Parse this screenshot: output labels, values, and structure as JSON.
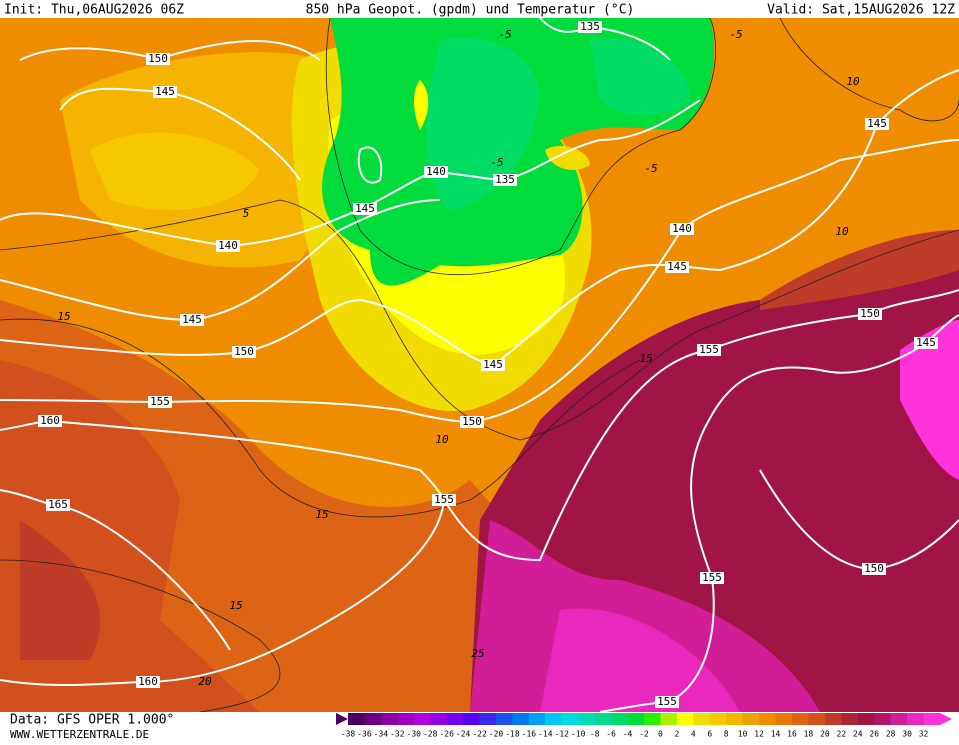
{
  "header": {
    "init": "Init: Thu,06AUG2026 06Z",
    "title": "850 hPa Geopot. (gpdm) und Temperatur (°C)",
    "valid": "Valid: Sat,15AUG2026 12Z"
  },
  "footer": {
    "source": "Data: GFS OPER 1.000°",
    "site": "WWW.WETTERZENTRALE.DE"
  },
  "legend": {
    "labels": [
      -38,
      -36,
      -34,
      -32,
      -30,
      -28,
      -26,
      -24,
      -22,
      -20,
      -18,
      -16,
      -14,
      -12,
      -10,
      -8,
      -6,
      -4,
      -2,
      0,
      2,
      4,
      6,
      8,
      10,
      12,
      14,
      16,
      18,
      20,
      22,
      24,
      26,
      28,
      30,
      32
    ],
    "colors": [
      "#4b0060",
      "#6a0080",
      "#8a00a0",
      "#a000c0",
      "#b400dc",
      "#9600e6",
      "#7800f0",
      "#5a00f0",
      "#3c28f0",
      "#1e50f0",
      "#0078f0",
      "#00a0f0",
      "#00c8f0",
      "#00dcdc",
      "#00dcb4",
      "#00dc8c",
      "#00dc64",
      "#00dc3c",
      "#28f000",
      "#aaf000",
      "#ffff00",
      "#f0dc00",
      "#f5c800",
      "#f5b400",
      "#f0a000",
      "#f08c00",
      "#e67800",
      "#dc6414",
      "#d2501e",
      "#be3c28",
      "#aa2832",
      "#a01446",
      "#b4146e",
      "#d21e96",
      "#eb28be",
      "#ff32dc"
    ]
  },
  "contour_labels": {
    "geopotential": [
      150,
      145,
      140,
      145,
      150,
      155,
      160,
      165,
      160,
      145,
      140,
      135,
      135,
      145,
      150,
      155,
      140,
      145,
      145,
      150,
      145,
      155,
      155,
      150,
      155
    ],
    "temperature": [
      5,
      10,
      15,
      15,
      15,
      20,
      -5,
      -5,
      10,
      10,
      15,
      -5,
      -5,
      25
    ]
  }
}
